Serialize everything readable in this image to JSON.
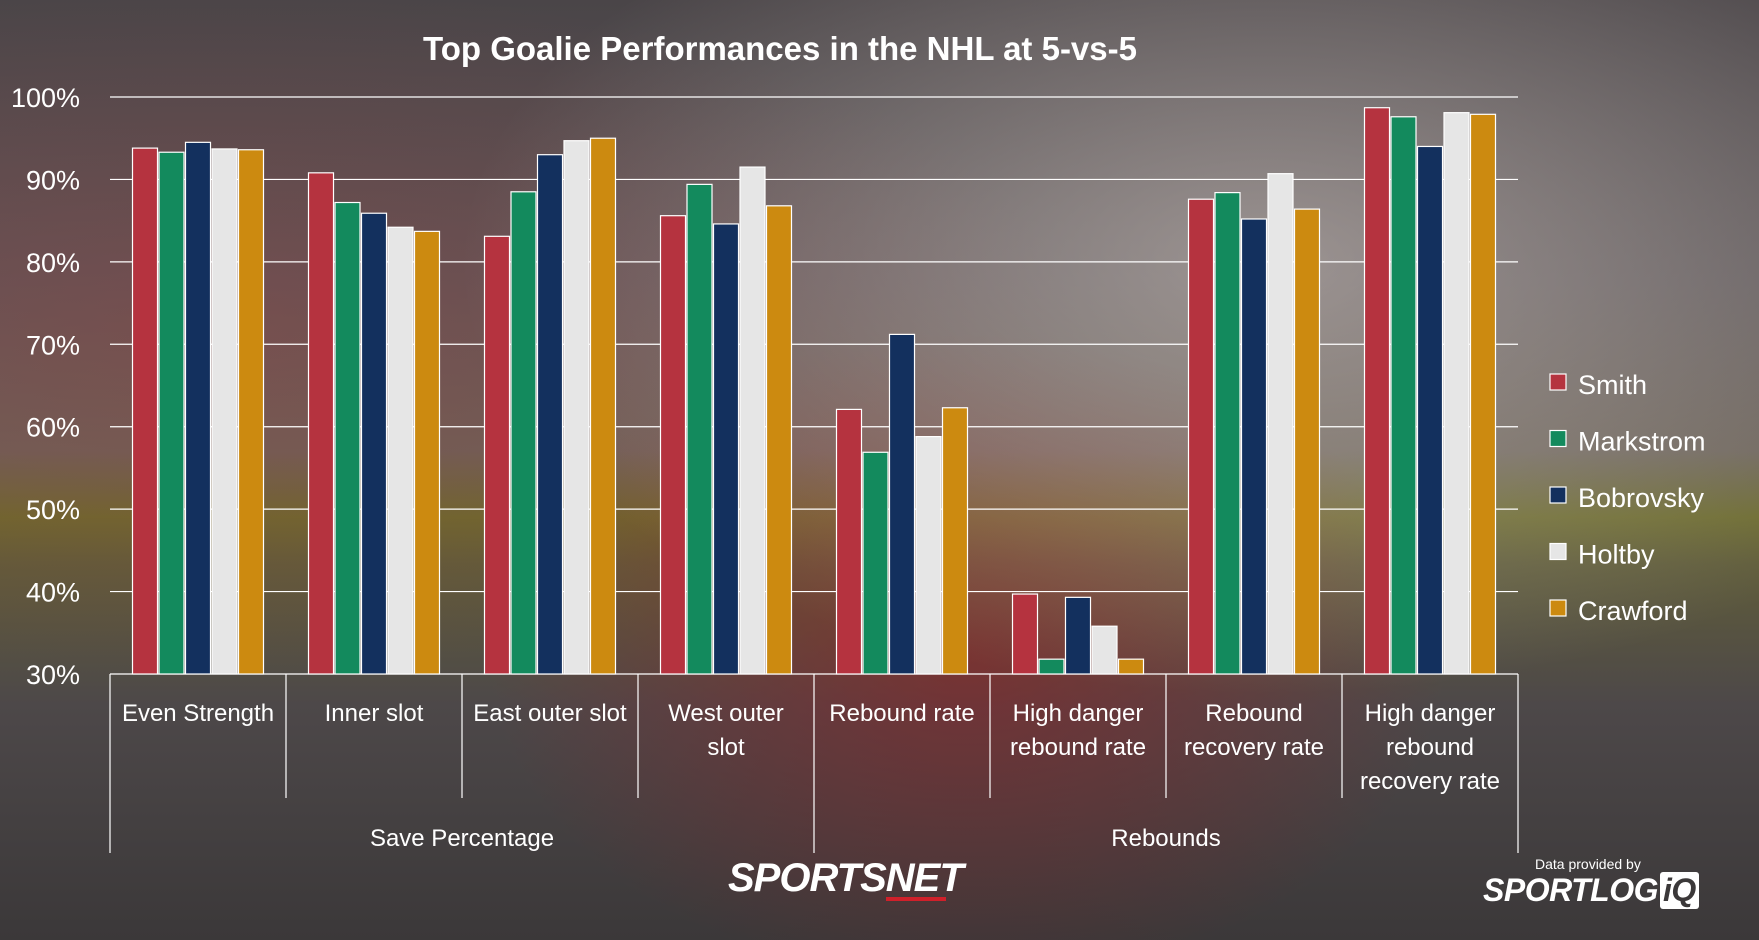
{
  "chart_data": {
    "type": "bar",
    "title": "Top Goalie Performances in the NHL at 5-vs-5",
    "ylim": [
      30,
      100
    ],
    "yticks": [
      "30%",
      "40%",
      "50%",
      "60%",
      "70%",
      "80%",
      "90%",
      "100%"
    ],
    "ytick_values": [
      30,
      40,
      50,
      60,
      70,
      80,
      90,
      100
    ],
    "grid": true,
    "legend_position": "right",
    "categories": [
      [
        "Even Strength"
      ],
      [
        "Inner slot"
      ],
      [
        "East outer slot"
      ],
      [
        "West outer",
        "slot"
      ],
      [
        "Rebound rate"
      ],
      [
        "High danger",
        "rebound rate"
      ],
      [
        "Rebound",
        "recovery rate"
      ],
      [
        "High danger",
        "rebound",
        "recovery rate"
      ]
    ],
    "groups": [
      {
        "label": "Save Percentage",
        "start": 0,
        "end": 4
      },
      {
        "label": "Rebounds",
        "start": 4,
        "end": 8
      }
    ],
    "series": [
      {
        "name": "Smith",
        "color": "#b5333f",
        "values": [
          93.8,
          90.8,
          83.1,
          85.6,
          62.1,
          39.7,
          87.6,
          98.7
        ]
      },
      {
        "name": "Markstrom",
        "color": "#138a5d",
        "values": [
          93.3,
          87.2,
          88.5,
          89.4,
          56.9,
          31.8,
          88.4,
          97.6
        ]
      },
      {
        "name": "Bobrovsky",
        "color": "#13305e",
        "values": [
          94.5,
          85.9,
          93.0,
          84.6,
          71.2,
          39.3,
          85.2,
          94.0
        ]
      },
      {
        "name": "Holtby",
        "color": "#e6e6e6",
        "values": [
          93.7,
          84.2,
          94.7,
          91.5,
          58.8,
          35.8,
          90.7,
          98.1
        ]
      },
      {
        "name": "Crawford",
        "color": "#cc8a10",
        "values": [
          93.6,
          83.7,
          95.0,
          86.8,
          62.3,
          31.8,
          86.4,
          97.9
        ]
      }
    ]
  },
  "branding": {
    "sportsnet": "SPORTSNET",
    "provided_by": "Data provided by",
    "sportlogiq_main": "SPORTLOG",
    "sportlogiq_iq": "iQ"
  }
}
